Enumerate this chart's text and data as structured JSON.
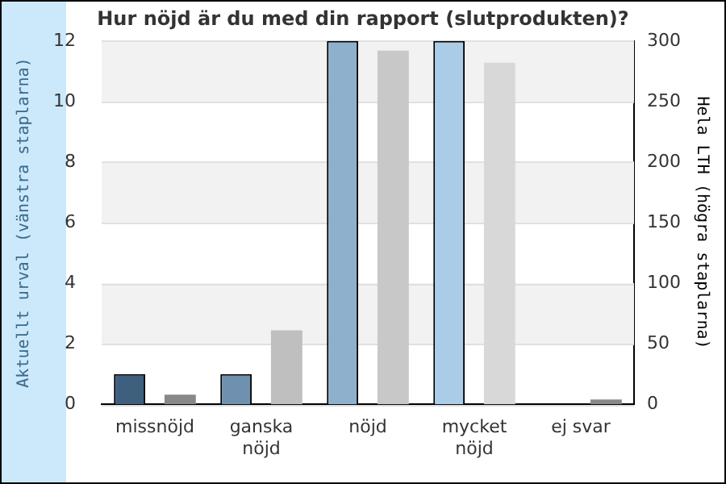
{
  "chart_data": {
    "type": "bar",
    "title": "Hur nöjd är du med din rapport (slutprodukten)?",
    "ylabel": "Aktuellt urval (vänstra staplarna)",
    "y2label": "Hela LTH (högra staplarna)",
    "categories": [
      "missnöjd",
      "ganska nöjd",
      "nöjd",
      "mycket nöjd",
      "ej svar"
    ],
    "series": [
      {
        "colors": [
          "#3f5f7f",
          "#7090b0",
          "#8fb0cc",
          "#aacce6",
          "#3f5f7f"
        ],
        "values": [
          1,
          1,
          12,
          12,
          0
        ]
      },
      {
        "axis": "y2",
        "colors": [
          "#888888",
          "#bfbfbf",
          "#c8c8c8",
          "#d8d8d8",
          "#888888"
        ],
        "values": [
          8,
          61,
          292,
          282,
          4
        ]
      }
    ],
    "ylim": [
      0,
      12
    ],
    "yticks": [
      0,
      2,
      4,
      6,
      8,
      10,
      12
    ],
    "y2lim": [
      0,
      300
    ],
    "y2ticks": [
      0,
      50,
      100,
      150,
      200,
      250,
      300
    ],
    "grid": "y",
    "legend": false
  }
}
